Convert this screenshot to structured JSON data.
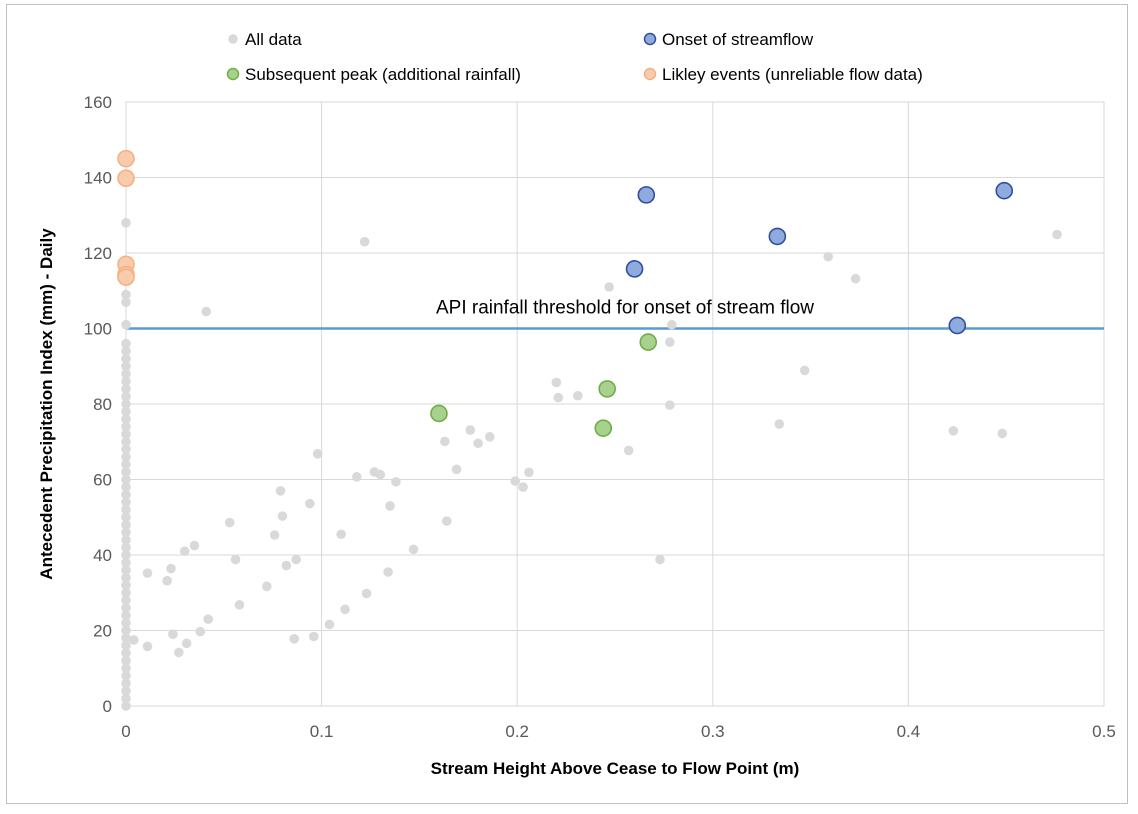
{
  "chart_data": {
    "type": "scatter",
    "title": "",
    "xlabel": "Stream Height Above Cease to Flow Point (m)",
    "ylabel": "Antecedent Precipitation Index (mm) - Daily",
    "xlim": [
      0,
      0.5
    ],
    "ylim": [
      0,
      160
    ],
    "x_ticks": [
      0,
      0.1,
      0.2,
      0.3,
      0.4,
      0.5
    ],
    "x_tick_labels": [
      "0",
      "0.1",
      "0.2",
      "0.3",
      "0.4",
      "0.5"
    ],
    "y_ticks": [
      0,
      20,
      40,
      60,
      80,
      100,
      120,
      140,
      160
    ],
    "y_tick_labels": [
      "0",
      "20",
      "40",
      "60",
      "80",
      "100",
      "120",
      "140",
      "160"
    ],
    "grid": true,
    "legend_position": "top",
    "threshold": {
      "y": 100,
      "label": "API rainfall threshold for onset of stream flow",
      "color": "#5b9bd5"
    },
    "series": [
      {
        "name": "All data",
        "marker": "circle",
        "size": "small",
        "color": "#d9d9d9",
        "points": [
          [
            0,
            0
          ],
          [
            0,
            2
          ],
          [
            0,
            4
          ],
          [
            0,
            6
          ],
          [
            0,
            8
          ],
          [
            0,
            10
          ],
          [
            0,
            12
          ],
          [
            0,
            14
          ],
          [
            0,
            16
          ],
          [
            0,
            18
          ],
          [
            0,
            20
          ],
          [
            0,
            22
          ],
          [
            0,
            24
          ],
          [
            0,
            26
          ],
          [
            0,
            28
          ],
          [
            0,
            30
          ],
          [
            0,
            32
          ],
          [
            0,
            34
          ],
          [
            0,
            36
          ],
          [
            0,
            38
          ],
          [
            0,
            40
          ],
          [
            0,
            42
          ],
          [
            0,
            44
          ],
          [
            0,
            46
          ],
          [
            0,
            48
          ],
          [
            0,
            50
          ],
          [
            0,
            52
          ],
          [
            0,
            54
          ],
          [
            0,
            56
          ],
          [
            0,
            58
          ],
          [
            0,
            60
          ],
          [
            0,
            62
          ],
          [
            0,
            64
          ],
          [
            0,
            66
          ],
          [
            0,
            68
          ],
          [
            0,
            70
          ],
          [
            0,
            72
          ],
          [
            0,
            74
          ],
          [
            0,
            76
          ],
          [
            0,
            78
          ],
          [
            0,
            80
          ],
          [
            0,
            82
          ],
          [
            0,
            84
          ],
          [
            0,
            86
          ],
          [
            0,
            88
          ],
          [
            0,
            90
          ],
          [
            0,
            92
          ],
          [
            0,
            94
          ],
          [
            0,
            96
          ],
          [
            0,
            101
          ],
          [
            0,
            107
          ],
          [
            0,
            109
          ],
          [
            0,
            128
          ],
          [
            0.004,
            17.5
          ],
          [
            0.011,
            15.8
          ],
          [
            0.011,
            35.2
          ],
          [
            0.021,
            33.2
          ],
          [
            0.023,
            36.4
          ],
          [
            0.024,
            19.0
          ],
          [
            0.027,
            14.2
          ],
          [
            0.03,
            41.0
          ],
          [
            0.031,
            16.6
          ],
          [
            0.035,
            42.5
          ],
          [
            0.038,
            19.7
          ],
          [
            0.041,
            104.5
          ],
          [
            0.042,
            23.0
          ],
          [
            0.053,
            48.6
          ],
          [
            0.056,
            38.8
          ],
          [
            0.058,
            26.8
          ],
          [
            0.072,
            31.7
          ],
          [
            0.076,
            45.3
          ],
          [
            0.079,
            57.0
          ],
          [
            0.08,
            50.3
          ],
          [
            0.082,
            37.2
          ],
          [
            0.086,
            17.8
          ],
          [
            0.087,
            38.8
          ],
          [
            0.094,
            53.6
          ],
          [
            0.096,
            18.4
          ],
          [
            0.098,
            66.8
          ],
          [
            0.104,
            21.6
          ],
          [
            0.11,
            45.5
          ],
          [
            0.112,
            25.6
          ],
          [
            0.118,
            60.7
          ],
          [
            0.122,
            123.0
          ],
          [
            0.123,
            29.8
          ],
          [
            0.127,
            62.0
          ],
          [
            0.13,
            61.3
          ],
          [
            0.134,
            35.5
          ],
          [
            0.135,
            53.0
          ],
          [
            0.138,
            59.4
          ],
          [
            0.147,
            41.5
          ],
          [
            0.163,
            70.1
          ],
          [
            0.164,
            49.0
          ],
          [
            0.169,
            62.7
          ],
          [
            0.176,
            73.1
          ],
          [
            0.18,
            69.6
          ],
          [
            0.186,
            71.3
          ],
          [
            0.199,
            59.6
          ],
          [
            0.203,
            58.0
          ],
          [
            0.206,
            61.9
          ],
          [
            0.22,
            85.7
          ],
          [
            0.221,
            81.7
          ],
          [
            0.231,
            82.2
          ],
          [
            0.247,
            111.0
          ],
          [
            0.257,
            67.7
          ],
          [
            0.273,
            38.8
          ],
          [
            0.278,
            96.4
          ],
          [
            0.278,
            79.7
          ],
          [
            0.279,
            101.0
          ],
          [
            0.334,
            74.7
          ],
          [
            0.347,
            88.9
          ],
          [
            0.359,
            119.0
          ],
          [
            0.373,
            113.2
          ],
          [
            0.423,
            72.9
          ],
          [
            0.448,
            72.2
          ],
          [
            0.476,
            124.9
          ]
        ]
      },
      {
        "name": "Onset of streamflow",
        "marker": "circle",
        "size": "large",
        "color": "#8faadc",
        "stroke": "#2f4f9f",
        "points": [
          [
            0.266,
            135.4
          ],
          [
            0.26,
            115.8
          ],
          [
            0.333,
            124.4
          ],
          [
            0.449,
            136.5
          ],
          [
            0.425,
            100.8
          ]
        ]
      },
      {
        "name": "Subsequent peak (additional rainfall)",
        "marker": "circle",
        "size": "large",
        "color": "#a9d18e",
        "stroke": "#70ad47",
        "points": [
          [
            0.16,
            77.5
          ],
          [
            0.246,
            84.0
          ],
          [
            0.267,
            96.4
          ],
          [
            0.244,
            73.6
          ]
        ]
      },
      {
        "name": "Likley events (unreliable flow data)",
        "marker": "circle",
        "size": "large",
        "color": "#f8cbad",
        "stroke": "#f4b183",
        "points": [
          [
            0,
            145.0
          ],
          [
            0,
            139.8
          ],
          [
            0,
            117.0
          ],
          [
            0,
            114.3
          ],
          [
            0,
            113.6
          ]
        ]
      }
    ]
  }
}
